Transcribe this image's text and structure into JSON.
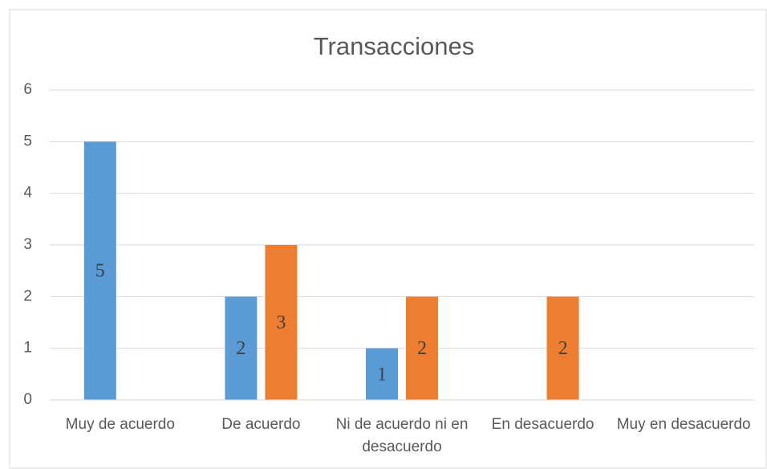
{
  "chart_data": {
    "type": "bar",
    "title": "Transacciones",
    "categories": [
      "Muy de acuerdo",
      "De acuerdo",
      "Ni de acuerdo ni en desacuerdo",
      "En desacuerdo",
      "Muy en desacuerdo"
    ],
    "series": [
      {
        "color": "#5b9bd5",
        "values": [
          5,
          2,
          1,
          null,
          null
        ]
      },
      {
        "color": "#ed7d31",
        "values": [
          null,
          3,
          2,
          2,
          null
        ]
      }
    ],
    "ylim": [
      0,
      6
    ],
    "yticks": [
      0,
      1,
      2,
      3,
      4,
      5,
      6
    ],
    "grid": true
  }
}
